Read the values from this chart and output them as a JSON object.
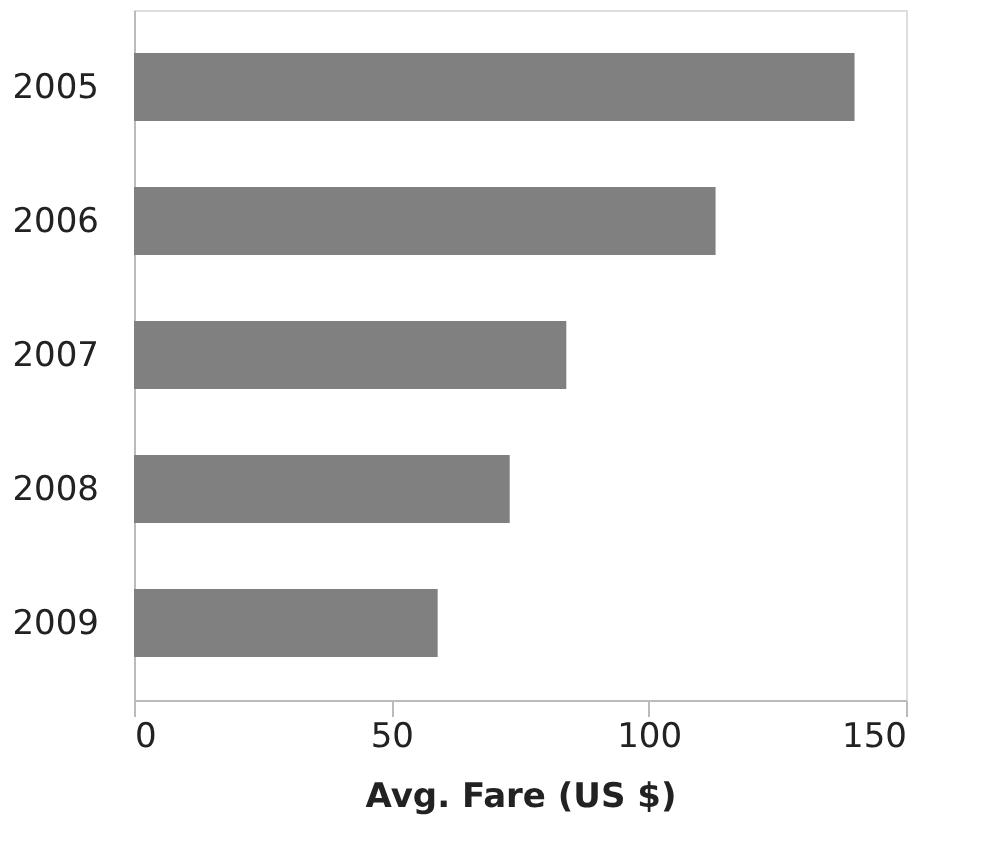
{
  "chart_data": {
    "type": "bar",
    "orientation": "horizontal",
    "xlabel": "Avg. Fare (US $)",
    "categories": [
      "2005",
      "2006",
      "2007",
      "2008",
      "2009"
    ],
    "values": [
      140,
      113,
      84,
      73,
      59
    ],
    "color": "#808080",
    "xlim": [
      0,
      150
    ],
    "xticks": [
      0,
      50,
      100,
      150
    ],
    "grid": false
  }
}
